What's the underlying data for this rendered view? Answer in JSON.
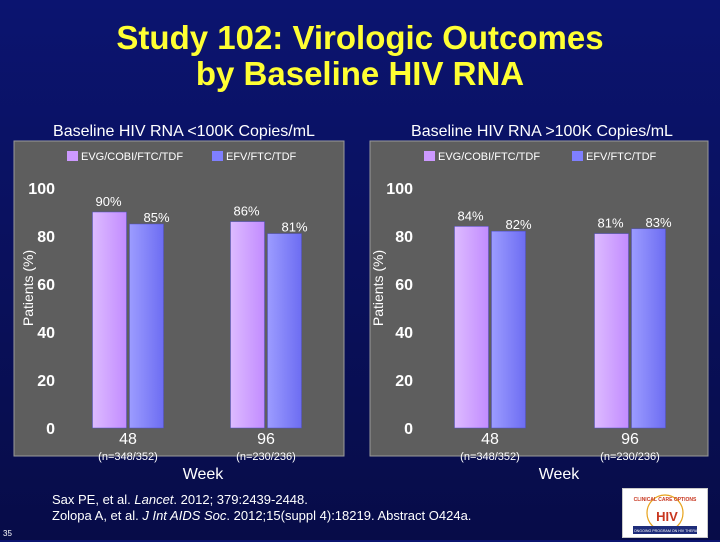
{
  "header": {
    "title_line1": "Study 102: Virologic Outcomes",
    "title_line2": "by Baseline HIV RNA"
  },
  "colors": {
    "background": "#0a1160",
    "title": "#ffff33",
    "panel": "#5e5e5e",
    "series_evg": "#cc99ff",
    "series_efv": "#7f7fff"
  },
  "chart_data": [
    {
      "type": "bar",
      "title": "Baseline HIV RNA <100K Copies/mL",
      "xlabel": "Week",
      "ylabel": "Patients (%)",
      "ylim": [
        0,
        100
      ],
      "yticks": [
        0,
        20,
        40,
        60,
        80,
        100
      ],
      "grid": false,
      "legend_position": "top",
      "categories": [
        "48",
        "96"
      ],
      "category_notes": [
        "(n=348/352)",
        "(n=230/236)"
      ],
      "series": [
        {
          "name": "EVG/COBI/FTC/TDF",
          "values": [
            90,
            86
          ],
          "labels": [
            "90%",
            "86%"
          ]
        },
        {
          "name": "EFV/FTC/TDF",
          "values": [
            85,
            81
          ],
          "labels": [
            "85%",
            "81%"
          ]
        }
      ]
    },
    {
      "type": "bar",
      "title": "Baseline HIV RNA >100K Copies/mL",
      "xlabel": "Week",
      "ylabel": "Patients (%)",
      "ylim": [
        0,
        100
      ],
      "yticks": [
        0,
        20,
        40,
        60,
        80,
        100
      ],
      "grid": false,
      "legend_position": "top",
      "categories": [
        "48",
        "96"
      ],
      "category_notes": [
        "(n=348/352)",
        "(n=230/236)"
      ],
      "series": [
        {
          "name": "EVG/COBI/FTC/TDF",
          "values": [
            84,
            81
          ],
          "labels": [
            "84%",
            "81%"
          ]
        },
        {
          "name": "EFV/FTC/TDF",
          "values": [
            82,
            83
          ],
          "labels": [
            "82%",
            "83%"
          ]
        }
      ]
    }
  ],
  "footer": {
    "ref1_pre": "Sax PE, et al. ",
    "ref1_journal": "Lancet",
    "ref1_post": ". 2012; 379:2439-2448.",
    "ref2_pre": "Zolopa A, et al. ",
    "ref2_journal": "J Int AIDS Soc",
    "ref2_post": ". 2012;15(suppl 4):18219. Abstract O424a."
  },
  "page_number": "35",
  "logo": {
    "text_top": "CLINICAL CARE OPTIONS",
    "text_brand": "HIV",
    "text_bottom": "AN ONGOING PROGRAM ON HIV THERAPY"
  }
}
